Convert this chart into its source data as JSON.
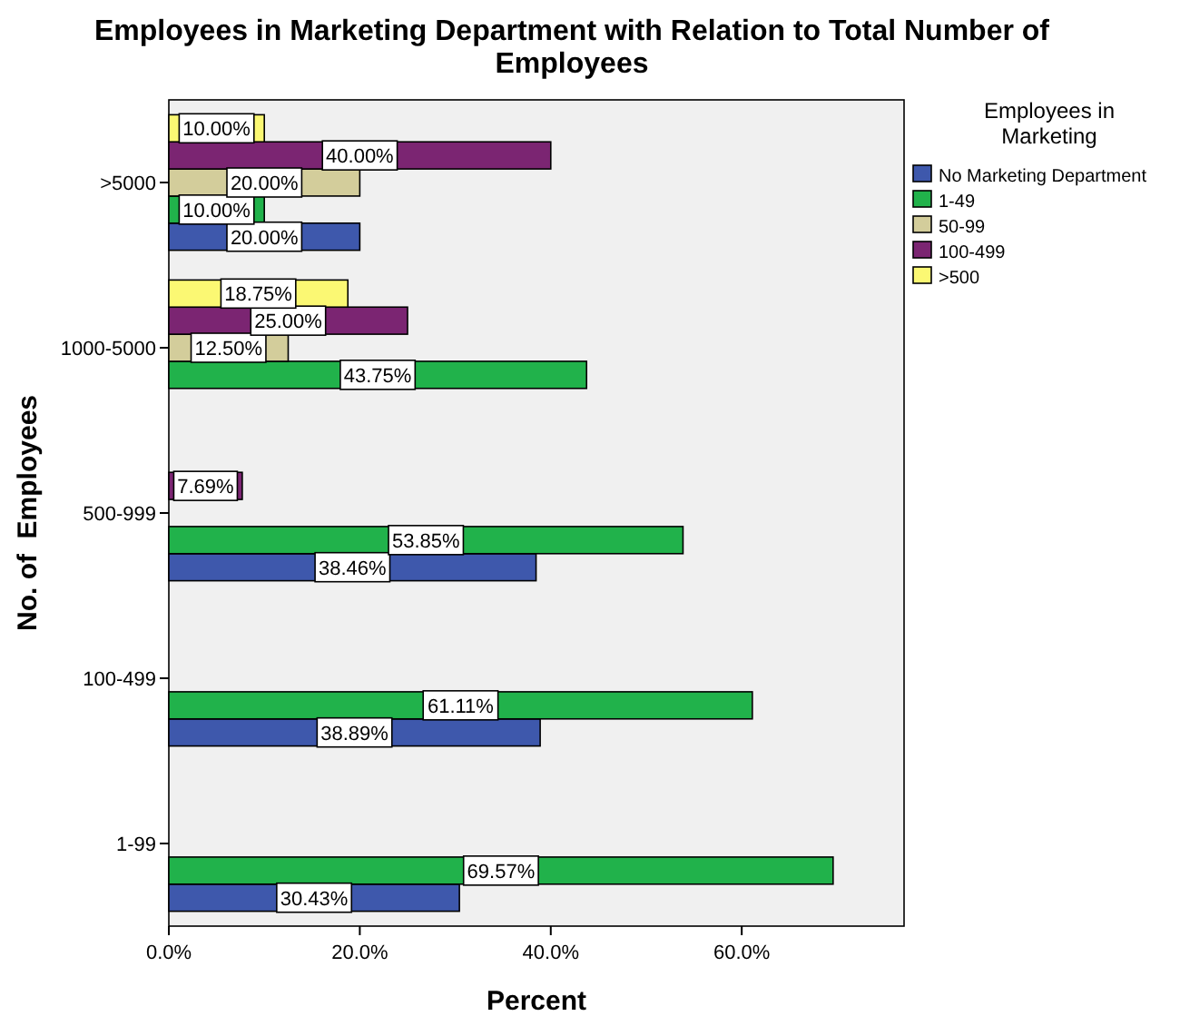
{
  "chart_data": {
    "type": "bar",
    "orientation": "horizontal",
    "title": "Employees in Marketing Department with Relation to Total Number of Employees",
    "xlabel": "Percent",
    "ylabel": "No. of  Employees",
    "legend_title": "Employees in Marketing",
    "categories": [
      ">5000",
      "1000-5000",
      "500-999",
      "100-499",
      "1-99"
    ],
    "series": [
      {
        "name": "No Marketing Department",
        "color": "#3e58ac",
        "values": [
          20,
          null,
          38.46,
          38.89,
          30.43
        ],
        "value_labels": [
          "20.00%",
          null,
          "38.46%",
          "38.89%",
          "30.43%"
        ]
      },
      {
        "name": "1-49",
        "color": "#21b24b",
        "values": [
          10,
          43.75,
          53.85,
          61.11,
          69.57
        ],
        "value_labels": [
          "10.00%",
          "43.75%",
          "53.85%",
          "61.11%",
          "69.57%"
        ]
      },
      {
        "name": "50-99",
        "color": "#d3cd9b",
        "values": [
          20,
          12.5,
          null,
          null,
          null
        ],
        "value_labels": [
          "20.00%",
          "12.50%",
          null,
          null,
          null
        ]
      },
      {
        "name": "100-499",
        "color": "#7b2572",
        "values": [
          40,
          25,
          7.69,
          null,
          null
        ],
        "value_labels": [
          "40.00%",
          "25.00%",
          "7.69%",
          null,
          null
        ]
      },
      {
        "name": ">500",
        "color": "#fbf873",
        "values": [
          10,
          18.75,
          null,
          null,
          null
        ],
        "value_labels": [
          "10.00%",
          "18.75%",
          null,
          null,
          null
        ]
      }
    ],
    "xlim": [
      0,
      77
    ],
    "xticks": [
      {
        "value": 0,
        "label": "0.0%"
      },
      {
        "value": 20,
        "label": "20.0%"
      },
      {
        "value": 40,
        "label": "40.0%"
      },
      {
        "value": 60,
        "label": "60.0%"
      }
    ],
    "grid": false,
    "legend": "right"
  }
}
